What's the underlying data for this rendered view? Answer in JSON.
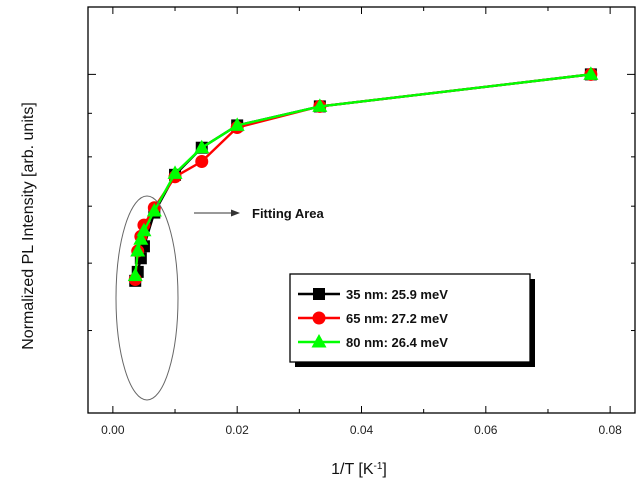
{
  "chart_data": {
    "type": "line",
    "xlabel": "1/T [K",
    "xlabel_superscript": "-1",
    "xlabel_suffix": "]",
    "ylabel": "Normalized PL Intensity [arb. units]",
    "xlim": [
      -0.004,
      0.084
    ],
    "ylim": [
      0.4,
      1.2
    ],
    "y_scale": "log",
    "x_tick_values": [
      0.0,
      0.02,
      0.04,
      0.06,
      0.08
    ],
    "x_tick_labels": [
      "0.00",
      "0.02",
      "0.04",
      "0.06",
      "0.08"
    ],
    "y_major_ticks": [
      1.0
    ],
    "grid": false,
    "legend_position": "lower-right",
    "annotation": {
      "text": "Fitting Area",
      "x": 0.005,
      "y": 0.42
    },
    "series": [
      {
        "name": "35 nm: 25.9 meV",
        "color": "#000000",
        "marker": "square",
        "x": [
          0.0769,
          0.0333,
          0.02,
          0.0143,
          0.01,
          0.00667,
          0.005,
          0.0045,
          0.004,
          0.0036
        ],
        "y": [
          1.0,
          0.917,
          0.871,
          0.82,
          0.762,
          0.688,
          0.628,
          0.608,
          0.586,
          0.572
        ]
      },
      {
        "name": "65 nm: 27.2 meV",
        "color": "#ff0000",
        "marker": "circle",
        "x": [
          0.0769,
          0.0333,
          0.02,
          0.0143,
          0.01,
          0.00667,
          0.005,
          0.0045,
          0.004,
          0.0036
        ],
        "y": [
          1.0,
          0.917,
          0.866,
          0.79,
          0.758,
          0.697,
          0.665,
          0.645,
          0.62,
          0.574
        ]
      },
      {
        "name": "80 nm: 26.4 meV",
        "color": "#00ff00",
        "marker": "triangle",
        "x": [
          0.0769,
          0.0333,
          0.02,
          0.0143,
          0.01,
          0.00667,
          0.005,
          0.0045,
          0.004,
          0.0036
        ],
        "y": [
          1.0,
          0.917,
          0.871,
          0.82,
          0.765,
          0.691,
          0.655,
          0.64,
          0.62,
          0.58
        ]
      }
    ]
  }
}
